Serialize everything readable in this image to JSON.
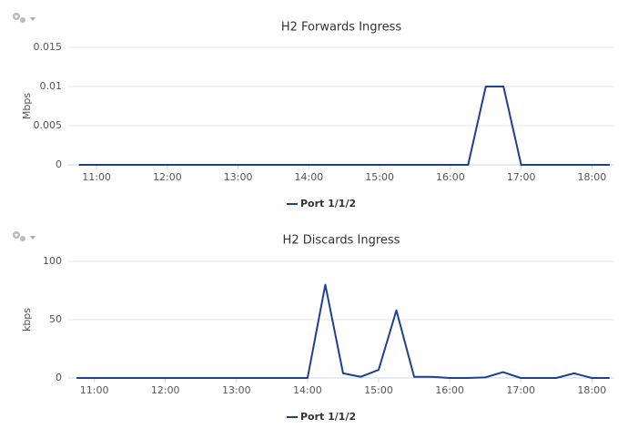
{
  "chart_data": [
    {
      "type": "line",
      "title": "H2 Forwards Ingress",
      "ylabel": "Mbps",
      "x": [
        645,
        660,
        675,
        690,
        705,
        720,
        735,
        750,
        765,
        780,
        795,
        810,
        825,
        840,
        855,
        870,
        885,
        900,
        915,
        930,
        945,
        960,
        975,
        990,
        1005,
        1020,
        1035,
        1050,
        1065,
        1080,
        1095
      ],
      "series": [
        {
          "name": "Port 1/1/2",
          "color": "#1f3f8f",
          "values": [
            0,
            0,
            0,
            0,
            0,
            0,
            0,
            0,
            0,
            0,
            0,
            0,
            0,
            0,
            0,
            0,
            0,
            0,
            0,
            0,
            0,
            0,
            0,
            0.01,
            0.01,
            0,
            0,
            0,
            0,
            0,
            0
          ]
        }
      ],
      "xlim": [
        636,
        1099
      ],
      "xticks": [
        {
          "value": 660,
          "label": "11:00"
        },
        {
          "value": 720,
          "label": "12:00"
        },
        {
          "value": 780,
          "label": "13:00"
        },
        {
          "value": 840,
          "label": "14:00"
        },
        {
          "value": 900,
          "label": "15:00"
        },
        {
          "value": 960,
          "label": "16:00"
        },
        {
          "value": 1020,
          "label": "17:00"
        },
        {
          "value": 1080,
          "label": "18:00"
        }
      ],
      "ylim": [
        0,
        0.015
      ],
      "yticks": [
        0,
        0.005,
        0.01,
        0.015
      ],
      "grid": true
    },
    {
      "type": "line",
      "title": "H2 Discards Ingress",
      "ylabel": "kbps",
      "x": [
        645,
        660,
        675,
        690,
        705,
        720,
        735,
        750,
        765,
        780,
        795,
        810,
        825,
        840,
        855,
        870,
        885,
        900,
        915,
        930,
        945,
        960,
        975,
        990,
        1005,
        1020,
        1035,
        1050,
        1065,
        1080,
        1095
      ],
      "series": [
        {
          "name": "Port 1/1/2",
          "color": "#1f3f8f",
          "values": [
            0,
            0,
            0,
            0,
            0,
            0,
            0,
            0,
            0,
            0,
            0,
            0,
            0,
            0,
            80,
            4,
            1,
            7,
            58,
            1,
            1,
            0,
            0,
            0.5,
            5,
            0,
            0,
            0,
            4,
            0,
            0
          ]
        }
      ],
      "xlim": [
        638,
        1099
      ],
      "xticks": [
        {
          "value": 660,
          "label": "11:00"
        },
        {
          "value": 720,
          "label": "12:00"
        },
        {
          "value": 780,
          "label": "13:00"
        },
        {
          "value": 840,
          "label": "14:00"
        },
        {
          "value": 900,
          "label": "15:00"
        },
        {
          "value": 960,
          "label": "16:00"
        },
        {
          "value": 1020,
          "label": "17:00"
        },
        {
          "value": 1080,
          "label": "18:00"
        }
      ],
      "ylim": [
        0,
        100
      ],
      "yticks": [
        0,
        50,
        100
      ],
      "grid": true
    }
  ]
}
